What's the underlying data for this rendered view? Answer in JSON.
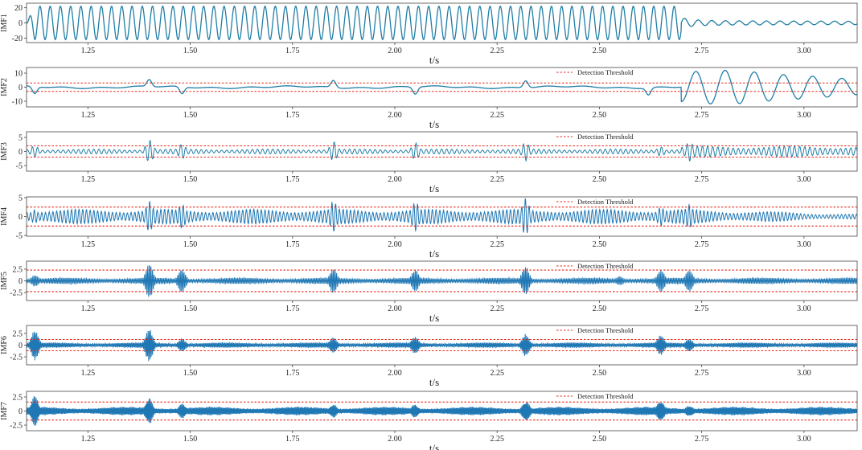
{
  "figure": {
    "x_axis_label": "t/s",
    "x_tick_labels": [
      "1.25",
      "1.50",
      "1.75",
      "2.00",
      "2.25",
      "2.50",
      "2.75",
      "3.00"
    ],
    "legend_label": "Detection Threshold"
  },
  "colors": {
    "signal_imf1_3": "#1f7ea6",
    "signal_imf4_7": "#1f77b4",
    "threshold": "#e8281b",
    "frame": "#444444"
  },
  "chart_data": [
    {
      "type": "line",
      "ylabel": "IMF1",
      "xlabel": "t/s",
      "xlim": [
        1.1,
        3.13
      ],
      "ylim": [
        -26,
        26
      ],
      "yticks": [
        -20,
        0,
        20
      ],
      "ytick_labels": [
        "-20",
        "0",
        "20"
      ],
      "has_threshold": false,
      "signal": {
        "description": "constant-amplitude oscillation until 2.70 s, then a small damped oscillation",
        "amplitude_before": 22,
        "cycles_per_second": 40,
        "change_time": 2.7,
        "amplitude_after": 3
      }
    },
    {
      "type": "line",
      "ylabel": "IMF2",
      "xlabel": "t/s",
      "xlim": [
        1.1,
        3.13
      ],
      "ylim": [
        -14,
        14
      ],
      "yticks": [
        -10,
        0,
        10
      ],
      "ytick_labels": [
        "-10",
        "0",
        "10"
      ],
      "has_threshold": true,
      "threshold": [
        3,
        -3
      ],
      "legend": "Detection Threshold",
      "signal": {
        "description": "small excursions near events, large oscillation after 2.70 s",
        "event_times": [
          1.12,
          1.4,
          1.48,
          1.85,
          2.05,
          2.32,
          2.62
        ],
        "event_amplitude": 5,
        "late_oscillation_start": 2.7,
        "late_amplitude": 12,
        "late_cycles_per_second": 14
      }
    },
    {
      "type": "line",
      "ylabel": "IMF3",
      "xlabel": "t/s",
      "xlim": [
        1.1,
        3.13
      ],
      "ylim": [
        -7,
        7
      ],
      "yticks": [
        -5,
        0,
        5
      ],
      "ytick_labels": [
        "-5",
        "0",
        "5"
      ],
      "has_threshold": true,
      "threshold": [
        2,
        -2
      ],
      "legend": "Detection Threshold",
      "signal": {
        "description": "bursts at event times over a low baseline",
        "event_times": [
          1.12,
          1.4,
          1.48,
          1.85,
          2.05,
          2.32,
          2.65,
          2.72
        ],
        "event_amplitudes": [
          3,
          6,
          2.5,
          4,
          4,
          3,
          3,
          3.5
        ],
        "baseline_amplitude": 0.8,
        "late_baseline_amplitude": 1.8,
        "late_start": 2.7
      }
    },
    {
      "type": "line",
      "ylabel": "IMF4",
      "xlabel": "t/s",
      "xlim": [
        1.1,
        3.13
      ],
      "ylim": [
        -5.2,
        5.2
      ],
      "yticks": [
        -5,
        0,
        5
      ],
      "ytick_labels": [
        "-5",
        "0",
        "5"
      ],
      "has_threshold": true,
      "threshold": [
        2.5,
        -2.5
      ],
      "legend": "Detection Threshold",
      "signal": {
        "description": "dense oscillation with a peak burst at 2.32 s, decaying after 2.72 s",
        "event_times": [
          1.12,
          1.4,
          1.48,
          1.85,
          2.05,
          2.32,
          2.65,
          2.72
        ],
        "event_amplitudes": [
          3,
          4.5,
          3.5,
          4,
          4,
          5,
          3.5,
          3
        ],
        "baseline_amplitude": 1.8,
        "decay_start": 2.72,
        "end_amplitude": 0.6
      }
    },
    {
      "type": "line",
      "ylabel": "IMF5",
      "xlabel": "t/s",
      "xlim": [
        1.1,
        3.13
      ],
      "ylim": [
        -4.2,
        4.2
      ],
      "yticks": [
        -2.5,
        0,
        2.5
      ],
      "ytick_labels": [
        "-2.5",
        "0",
        "2.5"
      ],
      "has_threshold": true,
      "threshold": [
        2.3,
        -2.3
      ],
      "legend": "Detection Threshold",
      "signal": {
        "description": "very dense oscillation with bursts at event times",
        "event_times": [
          1.12,
          1.4,
          1.48,
          1.85,
          2.05,
          2.32,
          2.55,
          2.65,
          2.72
        ],
        "event_amplitudes": [
          1.8,
          3.5,
          3.8,
          2.5,
          2.2,
          4,
          1.5,
          2.5,
          2.5
        ],
        "baseline_amplitude": 0.6
      }
    },
    {
      "type": "line",
      "ylabel": "IMF6",
      "xlabel": "t/s",
      "xlim": [
        1.1,
        3.13
      ],
      "ylim": [
        -4.2,
        4.2
      ],
      "yticks": [
        -2.5,
        0,
        2.5
      ],
      "ytick_labels": [
        "-2.5",
        "0",
        "2.5"
      ],
      "has_threshold": true,
      "threshold": [
        1.2,
        -1.2
      ],
      "legend": "Detection Threshold",
      "signal": {
        "description": "very dense oscillation with bursts at event times",
        "event_times": [
          1.12,
          1.4,
          1.48,
          1.85,
          2.05,
          2.32,
          2.65,
          2.72
        ],
        "event_amplitudes": [
          3.5,
          3.5,
          2.5,
          2,
          2,
          4,
          2,
          2
        ],
        "baseline_amplitude": 0.5
      }
    },
    {
      "type": "line",
      "ylabel": "IMF7",
      "xlabel": "t/s",
      "xlim": [
        1.1,
        3.13
      ],
      "ylim": [
        -3.5,
        3.5
      ],
      "yticks": [
        -2.5,
        0,
        2.5
      ],
      "ytick_labels": [
        "-2.5",
        "0",
        "2.5"
      ],
      "has_threshold": true,
      "threshold": [
        1.6,
        -1.6
      ],
      "legend": "Detection Threshold",
      "signal": {
        "description": "very dense oscillation with bursts at event times",
        "event_times": [
          1.12,
          1.4,
          1.48,
          1.85,
          2.05,
          2.32,
          2.65,
          2.72
        ],
        "event_amplitudes": [
          2.5,
          3,
          2,
          2,
          1.8,
          3,
          2,
          1.8
        ],
        "baseline_amplitude": 0.7
      }
    }
  ]
}
